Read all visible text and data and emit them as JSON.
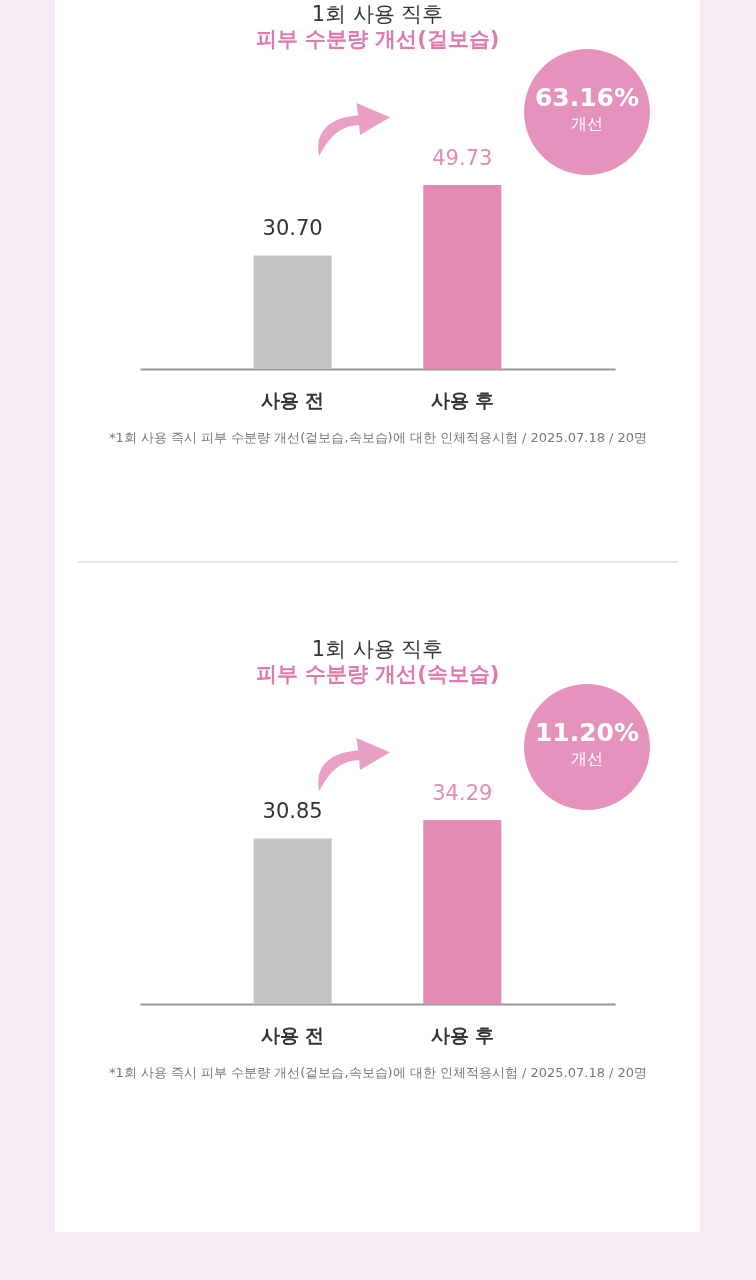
{
  "chart_data": [
    {
      "type": "bar",
      "title": "1회 사용 직후",
      "subtitle": "피부 수분량 개선(겉보습)",
      "categories": [
        "사용 전",
        "사용 후"
      ],
      "values": [
        30.7,
        49.73
      ],
      "value_labels": [
        "30.70",
        "49.73"
      ],
      "colors": [
        "#c4c4c4",
        "#e38ab5"
      ],
      "annotations": [
        "63.16%",
        "개선",
        "*1회 사용 즉시 피부 수분량 개선(겉보습,속보습)에 대한 인체적용시험 / 2025.07.18 / 20명"
      ]
    },
    {
      "type": "bar",
      "title": "1회 사용 직후",
      "subtitle": "피부 수분량 개선(속보습)",
      "categories": [
        "사용 전",
        "사용 후"
      ],
      "values": [
        30.85,
        34.29
      ],
      "value_labels": [
        "30.85",
        "34.29"
      ],
      "colors": [
        "#c4c4c4",
        "#e38ab5"
      ],
      "annotations": [
        "11.20%",
        "개선",
        "*1회 사용 즉시 피부 수분량 개선(겉보습,속보습)에 대한 인체적용시험 / 2025.07.18 / 20명"
      ]
    }
  ]
}
